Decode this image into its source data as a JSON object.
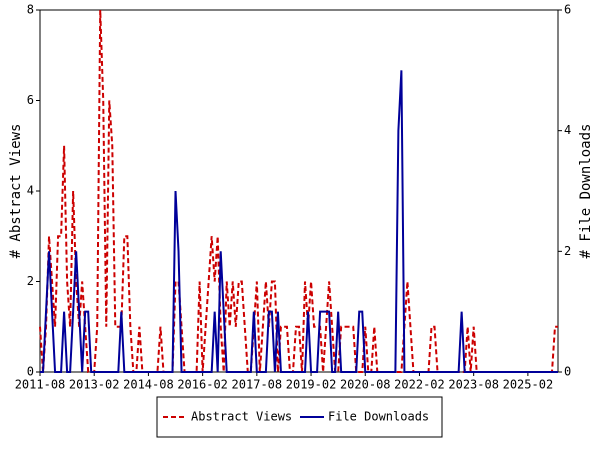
{
  "chart_data": {
    "type": "line",
    "ylabel": "# Abstract Views",
    "y2label": "# File Downloads",
    "categories": [
      "2011-08",
      null,
      null,
      null,
      null,
      null,
      null,
      null,
      null,
      null,
      null,
      null,
      null,
      null,
      null,
      null,
      null,
      null,
      "2013-02",
      null,
      null,
      null,
      null,
      null,
      null,
      null,
      null,
      null,
      null,
      null,
      null,
      null,
      null,
      null,
      null,
      null,
      "2014-08",
      null,
      null,
      null,
      null,
      null,
      null,
      null,
      null,
      null,
      null,
      null,
      null,
      null,
      null,
      null,
      null,
      null,
      "2016-02",
      null,
      null,
      null,
      null,
      null,
      null,
      null,
      null,
      null,
      null,
      null,
      null,
      null,
      null,
      null,
      null,
      null,
      "2017-08",
      null,
      null,
      null,
      null,
      null,
      null,
      null,
      null,
      null,
      null,
      null,
      null,
      null,
      null,
      null,
      null,
      null,
      "2019-02",
      null,
      null,
      null,
      null,
      null,
      null,
      null,
      null,
      null,
      null,
      null,
      null,
      null,
      null,
      null,
      null,
      null,
      "2020-08",
      null,
      null,
      null,
      null,
      null,
      null,
      null,
      null,
      null,
      null,
      null,
      null,
      null,
      null,
      null,
      null,
      null,
      "2022-02",
      null,
      null,
      null,
      null,
      null,
      null,
      null,
      null,
      null,
      null,
      null,
      null,
      null,
      null,
      null,
      null,
      null,
      "2023-08",
      null,
      null,
      null,
      null,
      null,
      null,
      null,
      null,
      null,
      null,
      null,
      null,
      null,
      null,
      null,
      null,
      null,
      "2025-02",
      null,
      null,
      null,
      null,
      null,
      null,
      null,
      null,
      null,
      null
    ],
    "series": [
      {
        "name": "Abstract Views",
        "color": "#cc0000",
        "dashed": true,
        "values": [
          1,
          0,
          1,
          3,
          2,
          1,
          3,
          3,
          5,
          2,
          1,
          4,
          2,
          1,
          2,
          1,
          0,
          0,
          0,
          1,
          8,
          6,
          1,
          6,
          5,
          1,
          1,
          1,
          3,
          3,
          1,
          0,
          0,
          1,
          0,
          0,
          0,
          0,
          0,
          0,
          1,
          0,
          0,
          0,
          0,
          2,
          2,
          1,
          0,
          0,
          0,
          0,
          0,
          2,
          0,
          1,
          2,
          3,
          2,
          3,
          1,
          0,
          2,
          1,
          2,
          1,
          2,
          2,
          1,
          0,
          0,
          1,
          2,
          0,
          1,
          2,
          1,
          2,
          2,
          0,
          1,
          1,
          1,
          0,
          0,
          1,
          1,
          0,
          2,
          1,
          2,
          1,
          1,
          1,
          0,
          1,
          2,
          1,
          0,
          0,
          1,
          1,
          1,
          1,
          1,
          0,
          0,
          0,
          1,
          0,
          0,
          1,
          0,
          0,
          0,
          0,
          0,
          0,
          0,
          0,
          0,
          1,
          2,
          1,
          0,
          0,
          0,
          0,
          0,
          0,
          1,
          1,
          0,
          0,
          0,
          0,
          0,
          0,
          0,
          0,
          0,
          0,
          1,
          0,
          1,
          0,
          0,
          0,
          0,
          0,
          0,
          0,
          0,
          0,
          0,
          0,
          0,
          0,
          0,
          0,
          0,
          0,
          0,
          0,
          0,
          0,
          0,
          0,
          0,
          0,
          0,
          1,
          1
        ]
      },
      {
        "name": "File Downloads",
        "color": "#000099",
        "dashed": false,
        "axis": "y2",
        "values": [
          0,
          0,
          1,
          2,
          1,
          0,
          0,
          0,
          1,
          0,
          0,
          1,
          2,
          1,
          0,
          1,
          1,
          0,
          0,
          0,
          0,
          0,
          0,
          0,
          0,
          0,
          0,
          1,
          0,
          0,
          0,
          0,
          0,
          0,
          0,
          0,
          0,
          0,
          0,
          0,
          0,
          0,
          0,
          0,
          0,
          3,
          2,
          0,
          0,
          0,
          0,
          0,
          0,
          0,
          0,
          0,
          0,
          0,
          1,
          0,
          2,
          1,
          0,
          0,
          0,
          0,
          0,
          0,
          0,
          0,
          0,
          1,
          0,
          0,
          0,
          0,
          1,
          1,
          0,
          1,
          0,
          0,
          0,
          0,
          0,
          0,
          0,
          0,
          0,
          1,
          0,
          0,
          0,
          1,
          1,
          1,
          1,
          0,
          0,
          1,
          0,
          0,
          0,
          0,
          0,
          0,
          1,
          1,
          0,
          0,
          0,
          0,
          0,
          0,
          0,
          0,
          0,
          0,
          0,
          4,
          5,
          0,
          0,
          0,
          0,
          0,
          0,
          0,
          0,
          0,
          0,
          0,
          0,
          0,
          0,
          0,
          0,
          0,
          0,
          0,
          1,
          0,
          0,
          0,
          0,
          0,
          0,
          0,
          0,
          0,
          0,
          0,
          0,
          0,
          0,
          0,
          0,
          0,
          0,
          0,
          0,
          0,
          0,
          0,
          0,
          0,
          0,
          0,
          0,
          0,
          0,
          0,
          0
        ]
      }
    ],
    "ylim": [
      0,
      8
    ],
    "yticks": [
      0,
      2,
      4,
      6,
      8
    ],
    "y2lim": [
      0,
      6
    ],
    "y2ticks": [
      0,
      2,
      4,
      6
    ],
    "legend": "bottom"
  }
}
